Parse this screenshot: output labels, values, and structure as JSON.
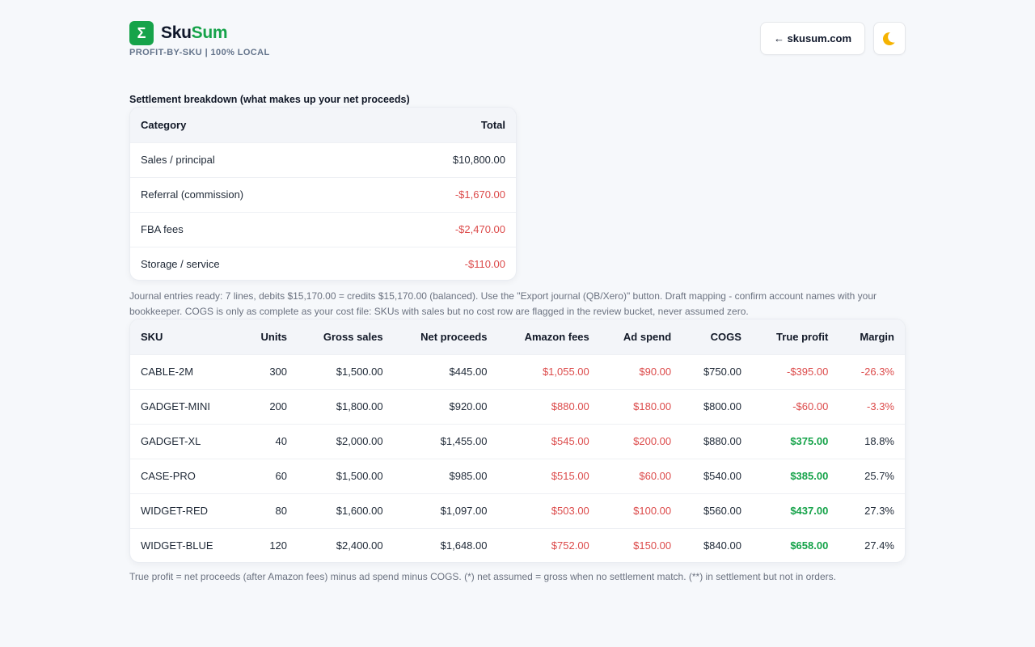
{
  "header": {
    "logo_glyph": "Σ",
    "brand_part1": "Sku",
    "brand_part2": "Sum",
    "tagline": "PROFIT-BY-SKU | 100% LOCAL",
    "site_link_label": "← skusum.com",
    "theme_toggle_icon": "moon-icon"
  },
  "settlement": {
    "title": "Settlement breakdown (what makes up your net proceeds)",
    "columns": [
      "Category",
      "Total"
    ],
    "rows": [
      {
        "category": "Sales / principal",
        "total": "$10,800.00",
        "negative": false
      },
      {
        "category": "Referral (commission)",
        "total": "-$1,670.00",
        "negative": true
      },
      {
        "category": "FBA fees",
        "total": "-$2,470.00",
        "negative": true
      },
      {
        "category": "Storage / service",
        "total": "-$110.00",
        "negative": true
      }
    ]
  },
  "journal_note": "Journal entries ready: 7 lines, debits $15,170.00 = credits $15,170.00 (balanced). Use the \"Export journal (QB/Xero)\" button. Draft mapping - confirm account names with your bookkeeper. COGS is only as complete as your cost file: SKUs with sales but no cost row are flagged in the review bucket, never assumed zero.",
  "sku_table": {
    "columns": [
      "SKU",
      "Units",
      "Gross sales",
      "Net proceeds",
      "Amazon fees",
      "Ad spend",
      "COGS",
      "True profit",
      "Margin"
    ],
    "rows": [
      {
        "sku": "CABLE-2M",
        "units": "300",
        "gross": "$1,500.00",
        "net": "$445.00",
        "fees": "$1,055.00",
        "ad": "$90.00",
        "cogs": "$750.00",
        "profit": "-$395.00",
        "margin": "-26.3%",
        "loss": true
      },
      {
        "sku": "GADGET-MINI",
        "units": "200",
        "gross": "$1,800.00",
        "net": "$920.00",
        "fees": "$880.00",
        "ad": "$180.00",
        "cogs": "$800.00",
        "profit": "-$60.00",
        "margin": "-3.3%",
        "loss": true
      },
      {
        "sku": "GADGET-XL",
        "units": "40",
        "gross": "$2,000.00",
        "net": "$1,455.00",
        "fees": "$545.00",
        "ad": "$200.00",
        "cogs": "$880.00",
        "profit": "$375.00",
        "margin": "18.8%",
        "loss": false
      },
      {
        "sku": "CASE-PRO",
        "units": "60",
        "gross": "$1,500.00",
        "net": "$985.00",
        "fees": "$515.00",
        "ad": "$60.00",
        "cogs": "$540.00",
        "profit": "$385.00",
        "margin": "25.7%",
        "loss": false
      },
      {
        "sku": "WIDGET-RED",
        "units": "80",
        "gross": "$1,600.00",
        "net": "$1,097.00",
        "fees": "$503.00",
        "ad": "$100.00",
        "cogs": "$560.00",
        "profit": "$437.00",
        "margin": "27.3%",
        "loss": false
      },
      {
        "sku": "WIDGET-BLUE",
        "units": "120",
        "gross": "$2,400.00",
        "net": "$1,648.00",
        "fees": "$752.00",
        "ad": "$150.00",
        "cogs": "$840.00",
        "profit": "$658.00",
        "margin": "27.4%",
        "loss": false
      }
    ]
  },
  "footnote": "True profit = net proceeds (after Amazon fees) minus ad spend minus COGS. (*) net assumed = gross when no settlement match. (**) in settlement but not in orders.",
  "colors": {
    "accent": "#16a34a",
    "negative": "#dc4b4b",
    "background": "#f6f8fb"
  }
}
